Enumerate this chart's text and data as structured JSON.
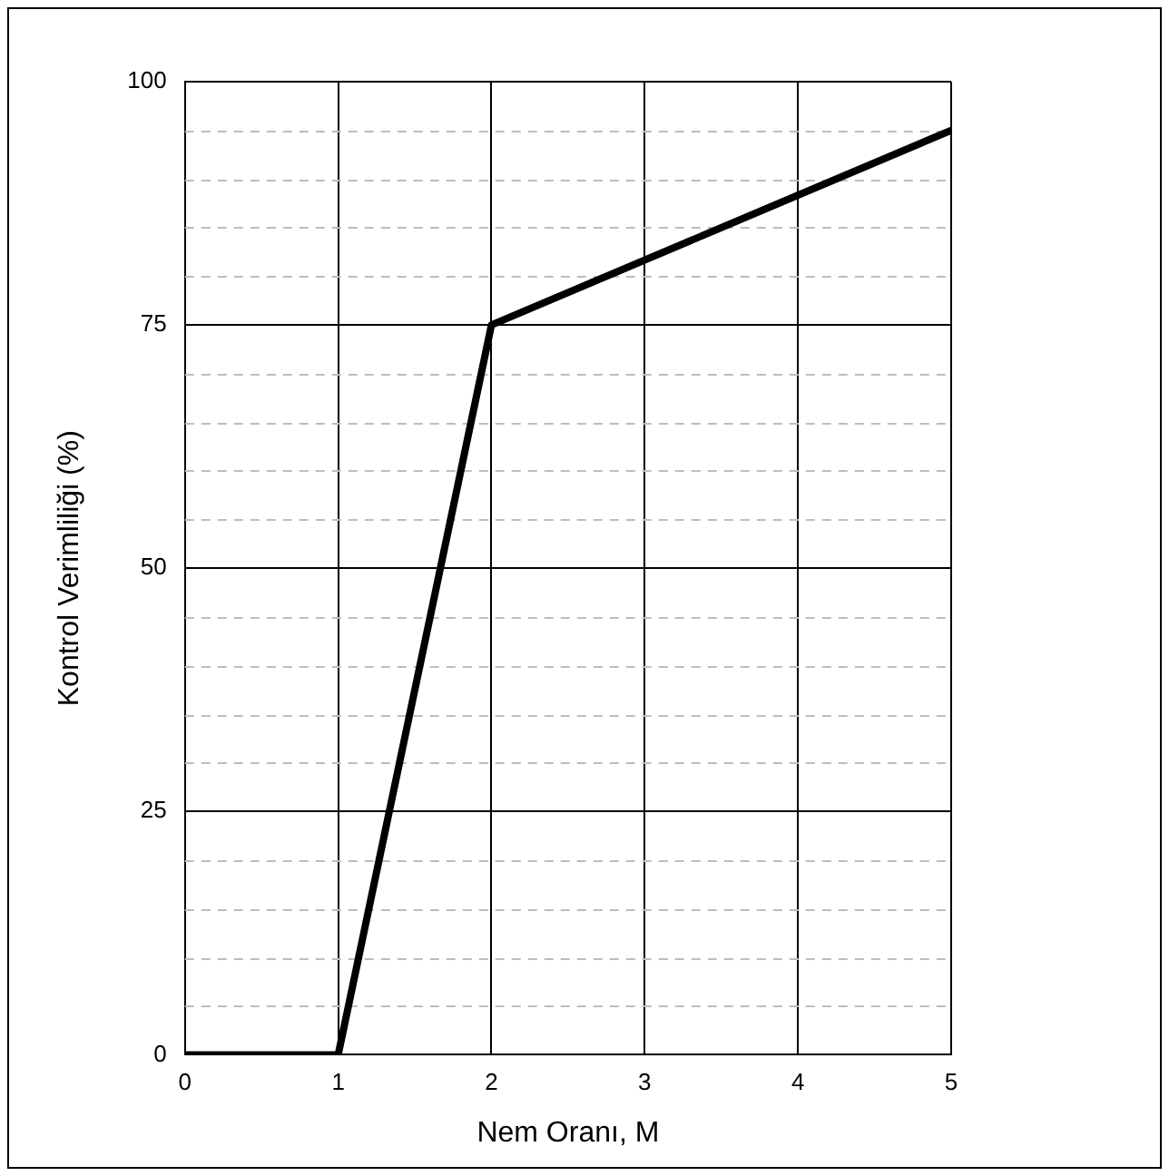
{
  "chart_data": {
    "type": "line",
    "xlabel": "Nem Oranı, M",
    "ylabel": "Kontrol Verimliliği (%)",
    "x": [
      0,
      1,
      2,
      5
    ],
    "series": [
      {
        "color": "#000000",
        "values": [
          0,
          0,
          75,
          95
        ]
      }
    ],
    "xlim": [
      0,
      5
    ],
    "xticks": [
      0,
      1,
      2,
      3,
      4,
      5
    ],
    "ylim": [
      0,
      100
    ],
    "yticks": [
      0,
      {
        "value": 5,
        "label": null
      },
      {
        "value": 10,
        "label": null
      },
      {
        "value": 15,
        "label": null
      },
      {
        "value": 20,
        "label": null
      },
      25,
      {
        "value": 30,
        "label": null
      },
      {
        "value": 35,
        "label": null
      },
      {
        "value": 40,
        "label": null
      },
      {
        "value": 45,
        "label": null
      },
      50,
      {
        "value": 55,
        "label": null
      },
      {
        "value": 60,
        "label": null
      },
      {
        "value": 65,
        "label": null
      },
      {
        "value": 70,
        "label": null
      },
      75,
      {
        "value": 80,
        "label": null
      },
      {
        "value": 85,
        "label": null
      },
      {
        "value": 90,
        "label": null
      },
      {
        "value": 95,
        "label": null
      },
      100
    ],
    "grid": true,
    "marker": "none",
    "line_style": "solid"
  }
}
